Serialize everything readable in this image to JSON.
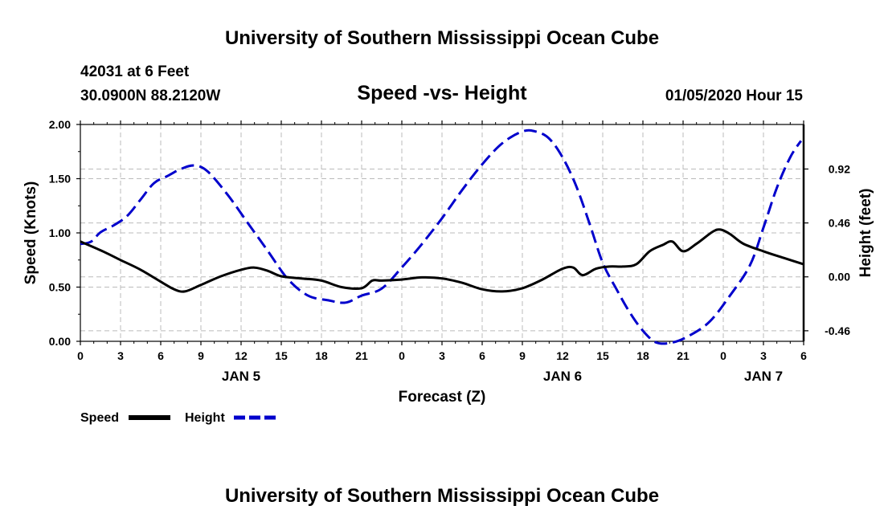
{
  "header": {
    "title": "University of Southern Mississippi Ocean Cube",
    "station": "42031 at 6 Feet",
    "coords": "30.0900N 88.2120W",
    "datetime": "01/05/2020 Hour 15"
  },
  "footer": {
    "title": "University of Southern Mississippi Ocean Cube"
  },
  "colors": {
    "speed": "#000000",
    "height": "#0000cc",
    "grid": "#bbbbbb"
  },
  "chart_data": {
    "type": "line",
    "title": "Speed -vs- Height",
    "xlabel": "Forecast (Z)",
    "ylabel": "Speed (Knots)",
    "y2label": "Height (feet)",
    "x_unit": "hours from 00Z Jan 5",
    "xlim": [
      0,
      54
    ],
    "ylim": [
      0,
      2.0
    ],
    "y2lim": [
      -0.55,
      1.3
    ],
    "x_tick_values": [
      0,
      3,
      6,
      9,
      12,
      15,
      18,
      21,
      24,
      27,
      30,
      33,
      36,
      39,
      42,
      45,
      48,
      51,
      54
    ],
    "x_tick_labels": [
      "0",
      "3",
      "6",
      "9",
      "12",
      "15",
      "18",
      "21",
      "0",
      "3",
      "6",
      "9",
      "12",
      "15",
      "18",
      "21",
      "0",
      "3",
      "6"
    ],
    "y_ticks": [
      0.0,
      0.5,
      1.0,
      1.5,
      2.0
    ],
    "y_tick_labels": [
      "0.00",
      "0.50",
      "1.00",
      "1.50",
      "2.00"
    ],
    "y2_ticks": [
      -0.46,
      0.0,
      0.46,
      0.92
    ],
    "y2_tick_labels": [
      "-0.46",
      "0.00",
      "0.46",
      "0.92"
    ],
    "day_labels": [
      {
        "x": 12,
        "label": "JAN 5"
      },
      {
        "x": 36,
        "label": "JAN 6"
      },
      {
        "x": 51,
        "label": "JAN 7"
      }
    ],
    "series": [
      {
        "name": "Speed",
        "axis": "left",
        "style": "solid",
        "x": [
          0,
          1.5,
          3,
          4.5,
          6,
          7,
          7.8,
          9,
          10.5,
          12,
          13,
          14,
          15,
          16.5,
          18,
          19.5,
          21,
          21.8,
          22.5,
          24,
          25.5,
          27,
          28.5,
          30,
          31.5,
          33,
          34.5,
          36,
          36.8,
          37.5,
          38.5,
          39.5,
          40.5,
          41.5,
          42.5,
          43.5,
          44.2,
          45,
          46,
          47.2,
          47.8,
          48.5,
          49.5,
          51,
          52.5,
          54
        ],
        "values": [
          0.92,
          0.84,
          0.75,
          0.66,
          0.55,
          0.48,
          0.46,
          0.52,
          0.6,
          0.66,
          0.68,
          0.65,
          0.6,
          0.58,
          0.56,
          0.5,
          0.49,
          0.56,
          0.56,
          0.57,
          0.59,
          0.58,
          0.54,
          0.48,
          0.46,
          0.49,
          0.57,
          0.67,
          0.68,
          0.61,
          0.67,
          0.69,
          0.69,
          0.71,
          0.83,
          0.89,
          0.92,
          0.83,
          0.9,
          1.01,
          1.03,
          0.99,
          0.9,
          0.83,
          0.77,
          0.71
        ]
      },
      {
        "name": "Height",
        "axis": "right",
        "style": "dashed",
        "x": [
          0,
          0.8,
          1.5,
          2.5,
          3.5,
          4.5,
          5.5,
          6.5,
          7.5,
          8.5,
          9.5,
          11,
          12.5,
          14,
          15.5,
          17,
          18.5,
          19.8,
          21,
          22.5,
          24,
          25.5,
          27,
          28.5,
          30,
          31.5,
          33,
          34,
          35,
          36,
          37,
          38,
          39,
          40,
          41,
          42,
          43,
          44.2,
          45.5,
          47,
          48.5,
          50,
          51,
          52,
          53,
          53.8
        ],
        "values": [
          0.28,
          0.3,
          0.38,
          0.44,
          0.52,
          0.66,
          0.8,
          0.86,
          0.92,
          0.95,
          0.9,
          0.7,
          0.46,
          0.22,
          -0.02,
          -0.16,
          -0.2,
          -0.22,
          -0.16,
          -0.1,
          0.08,
          0.28,
          0.5,
          0.74,
          0.96,
          1.14,
          1.24,
          1.24,
          1.18,
          1.02,
          0.78,
          0.46,
          0.12,
          -0.1,
          -0.3,
          -0.46,
          -0.56,
          -0.56,
          -0.5,
          -0.38,
          -0.16,
          0.1,
          0.42,
          0.76,
          1.02,
          1.16
        ]
      }
    ],
    "legend": [
      {
        "label": "Speed"
      },
      {
        "label": "Height"
      }
    ]
  }
}
